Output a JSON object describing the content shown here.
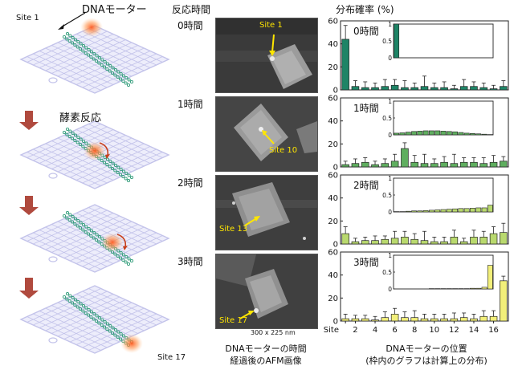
{
  "figure": {
    "header_time": "反応時間",
    "header_prob": "分布確率 (%)",
    "motor_label": "DNAモーター",
    "site1_label": "Site 1",
    "site17_label": "Site 17",
    "reaction_label": "酵素反応",
    "afm_caption_line1": "DNAモーターの時間",
    "afm_caption_line2": "経過後のAFM画像",
    "afm_scale": "300 x 225 nm",
    "xaxis_caption_line1": "DNAモーターの位置",
    "xaxis_caption_line2": "(枠内のグラフは計算上の分布)",
    "colors": {
      "panel0": "#1e8466",
      "panel1": "#5fae5f",
      "panel2": "#b9d96e",
      "panel3": "#f2ef7a",
      "arrow": "#b04a3e",
      "origami": "#c3c3ea",
      "helix": "#2e9b78"
    },
    "rows": [
      {
        "time": "0時間",
        "afm_site": "Site 1"
      },
      {
        "time": "1時間",
        "afm_site": "Site 10"
      },
      {
        "time": "2時間",
        "afm_site": "Site 13"
      },
      {
        "time": "3時間",
        "afm_site": "Site 17"
      }
    ]
  },
  "chart_data": {
    "type": "bar",
    "x": [
      1,
      2,
      3,
      4,
      5,
      6,
      7,
      8,
      9,
      10,
      11,
      12,
      13,
      14,
      15,
      16,
      17
    ],
    "xtick_labels": [
      "Site",
      "2",
      "4",
      "6",
      "8",
      "10",
      "12",
      "14",
      "16"
    ],
    "xtick_values": [
      1,
      2,
      4,
      6,
      8,
      10,
      12,
      14,
      16
    ],
    "ylim": [
      0,
      60
    ],
    "yticks": [
      0,
      20,
      40,
      60
    ],
    "inset_ylim": [
      0,
      1
    ],
    "inset_yticks": [
      "0",
      "0.5",
      "1"
    ],
    "panels": [
      {
        "label": "0時間",
        "values": [
          44,
          3,
          2,
          2,
          3,
          4,
          2,
          2,
          3,
          2,
          2,
          1,
          3,
          3,
          2,
          1,
          3
        ],
        "errors": [
          12,
          5,
          5,
          4,
          6,
          5,
          6,
          4,
          9,
          4,
          5,
          3,
          6,
          4,
          4,
          3,
          5
        ],
        "inset_values": [
          1,
          0,
          0,
          0,
          0,
          0,
          0,
          0,
          0,
          0,
          0,
          0,
          0,
          0,
          0,
          0,
          0
        ]
      },
      {
        "label": "1時間",
        "values": [
          2,
          3,
          4,
          2,
          3,
          5,
          16,
          4,
          3,
          3,
          4,
          3,
          4,
          4,
          3,
          4,
          5
        ],
        "errors": [
          3,
          4,
          4,
          3,
          4,
          6,
          5,
          6,
          8,
          4,
          5,
          8,
          4,
          4,
          5,
          6,
          4
        ],
        "inset_values": [
          0.05,
          0.06,
          0.08,
          0.1,
          0.11,
          0.12,
          0.12,
          0.12,
          0.11,
          0.1,
          0.09,
          0.07,
          0.05,
          0.04,
          0.03,
          0.02,
          0.01
        ]
      },
      {
        "label": "2時間",
        "values": [
          9,
          2,
          3,
          3,
          4,
          5,
          6,
          4,
          3,
          2,
          2,
          6,
          2,
          6,
          6,
          9,
          10
        ],
        "errors": [
          6,
          3,
          3,
          4,
          3,
          6,
          5,
          5,
          8,
          4,
          4,
          6,
          3,
          6,
          5,
          6,
          8
        ],
        "inset_values": [
          0.01,
          0.01,
          0.02,
          0.03,
          0.03,
          0.04,
          0.05,
          0.06,
          0.07,
          0.08,
          0.09,
          0.1,
          0.1,
          0.11,
          0.12,
          0.12,
          0.2
        ]
      },
      {
        "label": "3時間",
        "values": [
          2,
          2,
          2,
          1,
          3,
          6,
          3,
          3,
          2,
          2,
          2,
          2,
          3,
          2,
          4,
          4,
          35
        ],
        "errors": [
          4,
          3,
          3,
          3,
          5,
          5,
          5,
          6,
          4,
          4,
          4,
          5,
          4,
          4,
          5,
          5,
          4
        ],
        "inset_values": [
          0,
          0,
          0,
          0,
          0,
          0,
          0.01,
          0.01,
          0.01,
          0.01,
          0.01,
          0.01,
          0.01,
          0.02,
          0.02,
          0.05,
          0.7
        ]
      }
    ]
  }
}
